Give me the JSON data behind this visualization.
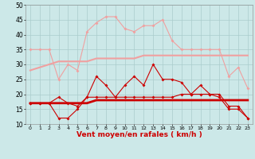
{
  "x": [
    0,
    1,
    2,
    3,
    4,
    5,
    6,
    7,
    8,
    9,
    10,
    11,
    12,
    13,
    14,
    15,
    16,
    17,
    18,
    19,
    20,
    21,
    22,
    23
  ],
  "series_rafales_max": [
    35,
    35,
    35,
    25,
    30,
    28,
    41,
    44,
    46,
    46,
    42,
    41,
    43,
    43,
    45,
    38,
    35,
    35,
    35,
    35,
    35,
    26,
    29,
    22
  ],
  "series_rafales_mean": [
    28,
    29,
    30,
    31,
    31,
    31,
    31,
    32,
    32,
    32,
    32,
    32,
    33,
    33,
    33,
    33,
    33,
    33,
    33,
    33,
    33,
    33,
    33,
    33
  ],
  "series_moyen_max": [
    17,
    17,
    17,
    19,
    17,
    16,
    19,
    26,
    23,
    19,
    23,
    26,
    23,
    30,
    25,
    25,
    24,
    20,
    23,
    20,
    20,
    16,
    16,
    12
  ],
  "series_moyen_min": [
    17,
    17,
    17,
    12,
    12,
    15,
    19,
    19,
    19,
    19,
    19,
    19,
    19,
    19,
    19,
    19,
    20,
    20,
    20,
    20,
    19,
    15,
    15,
    12
  ],
  "series_moyen_mean": [
    17,
    17,
    17,
    17,
    17,
    17,
    17,
    18,
    18,
    18,
    18,
    18,
    18,
    18,
    18,
    18,
    18,
    18,
    18,
    18,
    18,
    18,
    18,
    18
  ],
  "xlabel": "Vent moyen/en rafales ( km/h )",
  "ylim": [
    10,
    50
  ],
  "yticks": [
    10,
    15,
    20,
    25,
    30,
    35,
    40,
    45,
    50
  ],
  "bg_color": "#cce8e8",
  "grid_color": "#aacccc",
  "color_light_pink": "#f0a0a0",
  "color_dark_red": "#cc0000",
  "color_medium_red": "#dd4444"
}
